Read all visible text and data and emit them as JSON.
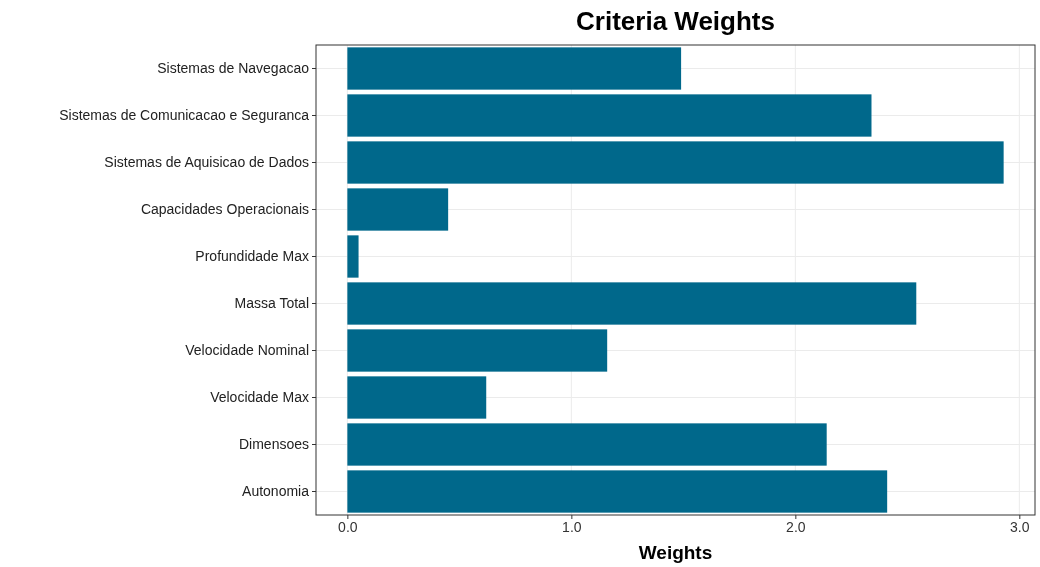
{
  "chart_data": {
    "type": "bar",
    "orientation": "horizontal",
    "title": "Criteria Weights",
    "xlabel": "Weights",
    "categories": [
      "Sistemas de Navegacao",
      "Sistemas de Comunicacao e Seguranca",
      "Sistemas de Aquisicao de Dados",
      "Capacidades Operacionais",
      "Profundidade Max",
      "Massa Total",
      "Velocidade Nominal",
      "Velocidade Max",
      "Dimensoes",
      "Autonomia"
    ],
    "values": [
      1.49,
      2.34,
      2.93,
      0.45,
      0.05,
      2.54,
      1.16,
      0.62,
      2.14,
      2.41
    ],
    "color": "#00688b",
    "xlim": [
      -0.14,
      3.07
    ],
    "xticks": [
      {
        "value": 0,
        "label": "0.0"
      },
      {
        "value": 1,
        "label": "1.0"
      },
      {
        "value": 2,
        "label": "2.0"
      },
      {
        "value": 3,
        "label": "3.0"
      }
    ],
    "grid": true
  }
}
